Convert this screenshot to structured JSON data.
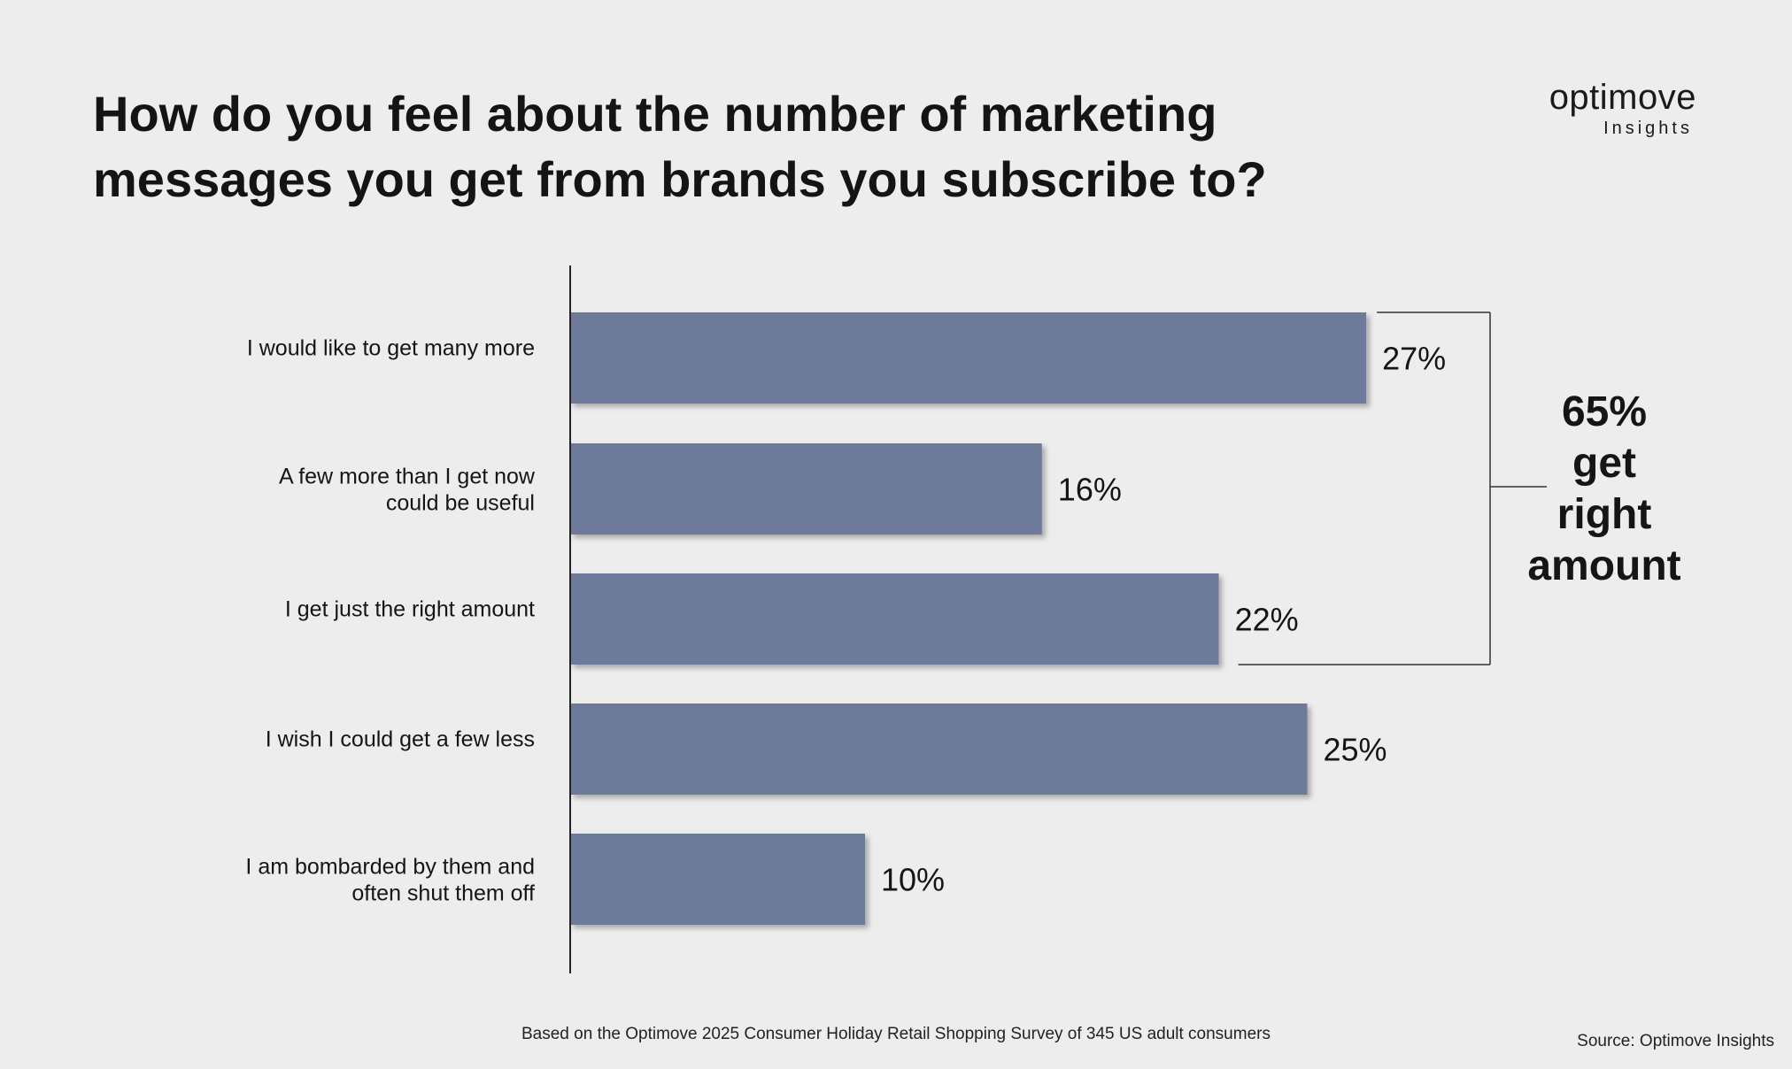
{
  "header": {
    "title_lines": [
      "How do you feel about the number of marketing",
      "messages you get from brands you subscribe to?"
    ]
  },
  "logo": {
    "name": "optimove",
    "sub": "Insights"
  },
  "chart_data": {
    "type": "bar",
    "orientation": "horizontal",
    "title": "How do you feel about the number of marketing messages you get from brands you subscribe to?",
    "categories": [
      [
        "I would like to get many more"
      ],
      [
        "A few more than I get now",
        "could be useful"
      ],
      [
        "I get just the right amount"
      ],
      [
        "I wish I could get a few less"
      ],
      [
        "I am bombarded by them and",
        "often shut them off"
      ]
    ],
    "values": [
      27,
      16,
      22,
      25,
      10
    ],
    "data_labels": [
      "27%",
      "16%",
      "22%",
      "25%",
      "10%"
    ],
    "bar_color": "#6e7a9a",
    "grid": false,
    "annotation": {
      "text_lines": [
        "65%",
        "get",
        "right",
        "amount"
      ],
      "brackets_categories": [
        0,
        1,
        2
      ]
    }
  },
  "footer": {
    "note": "Based on the Optimove 2025 Consumer Holiday Retail Shopping Survey of 345 US adult consumers",
    "source": "Source: Optimove Insights"
  }
}
